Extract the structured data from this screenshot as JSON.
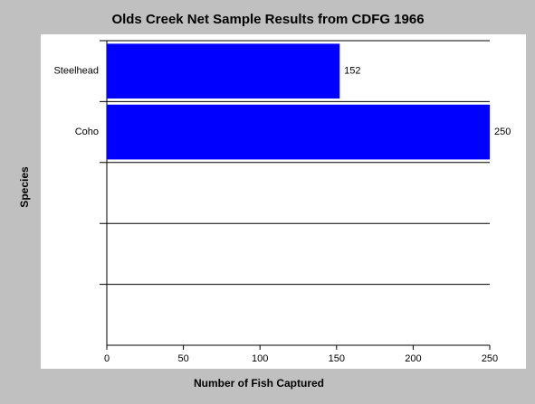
{
  "chart_data": {
    "type": "bar",
    "orientation": "horizontal",
    "title": "Olds Creek Net Sample Results from CDFG 1966",
    "x_label": "Number of Fish Captured",
    "y_label": "Species",
    "categories": [
      "Steelhead",
      "Coho",
      null,
      null,
      null
    ],
    "values": [
      152,
      250,
      null,
      null,
      null
    ],
    "color": "#0000ff",
    "xlim": [
      0,
      250
    ],
    "xticks": [
      0,
      50,
      100,
      150,
      200,
      250
    ]
  }
}
